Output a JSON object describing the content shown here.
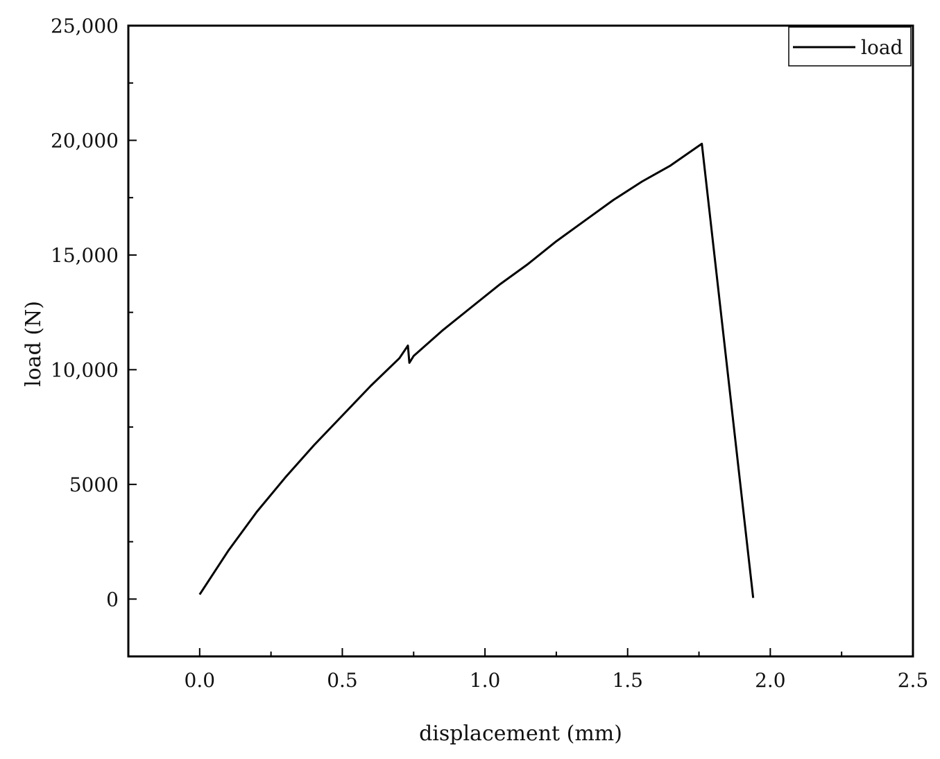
{
  "chart_data": {
    "type": "line",
    "title": "",
    "xlabel": "displacement (mm)",
    "ylabel": "load (N)",
    "xlim": [
      -0.25,
      2.5
    ],
    "ylim": [
      -2500,
      25000
    ],
    "x_ticks": [
      {
        "value": 0.0,
        "label": "0.0"
      },
      {
        "value": 0.5,
        "label": "0.5"
      },
      {
        "value": 1.0,
        "label": "1.0"
      },
      {
        "value": 1.5,
        "label": "1.5"
      },
      {
        "value": 2.0,
        "label": "2.0"
      },
      {
        "value": 2.5,
        "label": "2.5"
      }
    ],
    "x_minor_ticks": [
      0.25,
      0.75,
      1.25,
      1.75,
      2.25
    ],
    "y_ticks": [
      {
        "value": 0,
        "label": "0"
      },
      {
        "value": 5000,
        "label": "5000"
      },
      {
        "value": 10000,
        "label": "10,000"
      },
      {
        "value": 15000,
        "label": "15,000"
      },
      {
        "value": 20000,
        "label": "20,000"
      },
      {
        "value": 25000,
        "label": "25,000"
      }
    ],
    "y_minor_ticks": [
      2500,
      7500,
      12500,
      17500,
      22500
    ],
    "grid": false,
    "legend_position": "top-right",
    "series": [
      {
        "name": "load",
        "color": "#000000",
        "x": [
          0.0,
          0.1,
          0.2,
          0.3,
          0.4,
          0.5,
          0.6,
          0.7,
          0.73,
          0.735,
          0.75,
          0.85,
          0.95,
          1.05,
          1.15,
          1.25,
          1.35,
          1.45,
          1.55,
          1.65,
          1.76,
          1.94
        ],
        "y": [
          200,
          2100,
          3800,
          5300,
          6700,
          8000,
          9300,
          10500,
          11050,
          10300,
          10600,
          11700,
          12700,
          13700,
          14600,
          15600,
          16500,
          17400,
          18200,
          18900,
          19850,
          50
        ]
      }
    ]
  }
}
